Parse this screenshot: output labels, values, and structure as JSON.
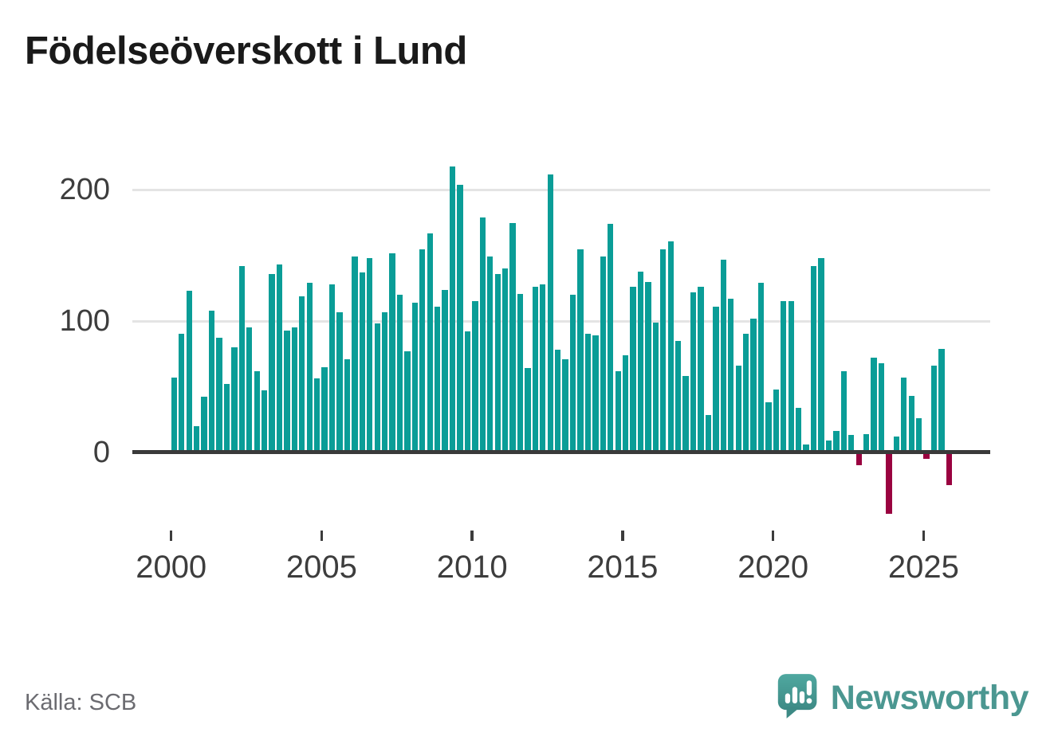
{
  "header": {
    "title": "Födelseöverskott i Lund"
  },
  "footer": {
    "source_label": "Källa: SCB",
    "brand_name": "Newsworthy"
  },
  "icons": {
    "logo": "newsworthy-speech-bubble-bar-chart-icon"
  },
  "colors": {
    "bar_positive": "#0a9d97",
    "bar_negative": "#9a0240",
    "axis_line": "#3a3a3a",
    "gridline": "#e4e4e4",
    "tick_text": "#3d3d3d",
    "muted_text": "#6b6b70",
    "brand_teal": "#4b9791"
  },
  "chart_data": {
    "type": "bar",
    "title": "Födelseöverskott i Lund",
    "x_start": "2000 Q1",
    "x_end": "2025 Q4",
    "periodicity": "quarterly",
    "x_start_year": 2000,
    "x_tick_labels": [
      "2000",
      "2005",
      "2010",
      "2015",
      "2020",
      "2025"
    ],
    "y_tick_labels": [
      "0",
      "100",
      "200"
    ],
    "y_ticks": [
      0,
      100,
      200
    ],
    "ylim": [
      -60,
      230
    ],
    "grid": "horizontal",
    "legend": "none",
    "values": [
      57,
      90,
      123,
      20,
      42,
      108,
      87,
      52,
      80,
      142,
      95,
      62,
      47,
      136,
      143,
      93,
      95,
      119,
      129,
      56,
      65,
      128,
      107,
      71,
      149,
      137,
      148,
      98,
      107,
      152,
      120,
      77,
      114,
      155,
      167,
      111,
      124,
      218,
      204,
      92,
      115,
      179,
      149,
      136,
      140,
      175,
      121,
      64,
      126,
      128,
      212,
      78,
      71,
      120,
      155,
      90,
      89,
      149,
      174,
      62,
      74,
      126,
      138,
      130,
      99,
      155,
      161,
      85,
      58,
      122,
      126,
      28,
      111,
      147,
      117,
      66,
      90,
      102,
      129,
      38,
      48,
      115,
      115,
      34,
      6,
      142,
      148,
      9,
      16,
      62,
      13,
      -10,
      14,
      72,
      68,
      -47,
      12,
      57,
      43,
      26,
      -5,
      66,
      79,
      -25
    ]
  }
}
